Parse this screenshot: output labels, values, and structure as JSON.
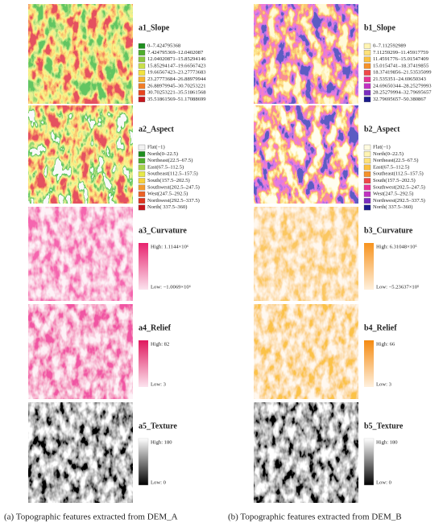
{
  "columns": [
    {
      "caption": "(a) Topographic  features extracted from DEM_A",
      "panels": [
        {
          "title": "a1_Slope",
          "legend": [
            {
              "label": "0–7.424795368",
              "color": "#1f8f1f"
            },
            {
              "label": "7.424795369–12.0402087",
              "color": "#4fae2c"
            },
            {
              "label": "12.04020871–15.85294146",
              "color": "#8dc63f"
            },
            {
              "label": "15.85294147–19.66567423",
              "color": "#c9df4a"
            },
            {
              "label": "19.66567423–23.27773683",
              "color": "#f2e33f"
            },
            {
              "label": "23.27773684–26.88979944",
              "color": "#f6b531"
            },
            {
              "label": "26.88979945–30.70253221",
              "color": "#f07d28"
            },
            {
              "label": "30.70253221–35.51861568",
              "color": "#e8431e"
            },
            {
              "label": "35.51861569–51.17088699",
              "color": "#c7161e"
            }
          ]
        },
        {
          "title": "a2_Aspect",
          "legend": [
            {
              "label": "Flat(−1)",
              "color": "#f2f2f2"
            },
            {
              "label": "North(0–22.5)",
              "color": "#1f8f1f"
            },
            {
              "label": "Northeast(22.5–67.5)",
              "color": "#4fae2c"
            },
            {
              "label": "East(67.5–112.5)",
              "color": "#a6d24a"
            },
            {
              "label": "Southeast(112.5–157.5)",
              "color": "#e6e94a"
            },
            {
              "label": "South(157.5–202.5)",
              "color": "#f6d13a"
            },
            {
              "label": "Southwest(202.5–247.5)",
              "color": "#f39a2e"
            },
            {
              "label": "West(247.5–292.5)",
              "color": "#ec6226"
            },
            {
              "label": "Northwest(292.5–337.5)",
              "color": "#e0351e"
            },
            {
              "label": "North( 337.5–360)",
              "color": "#c7161e"
            }
          ]
        },
        {
          "title": "a3_Curvature",
          "gradient": {
            "high": "High: 1.1144×10⁶",
            "low": "Low: −1.0069×10⁶",
            "high_color": "#e8226e",
            "low_color": "#fbe3ee"
          }
        },
        {
          "title": "a4_Relief",
          "gradient": {
            "high": "High: 82",
            "low": "Low: 3",
            "high_color": "#e0185e",
            "low_color": "#fce4ef"
          }
        },
        {
          "title": "a5_Texture",
          "gradient": {
            "high": "High: 180",
            "low": "Low: 0",
            "high_color": "#ffffff",
            "low_color": "#000000"
          }
        }
      ]
    },
    {
      "caption": "(b) Topographic features extracted from DEM_B",
      "panels": [
        {
          "title": "b1_Slope",
          "legend": [
            {
              "label": "0–7.112592989",
              "color": "#fff4b3"
            },
            {
              "label": "7.11259299–11.45917759",
              "color": "#fde27a"
            },
            {
              "label": "11.4591776–15.01547409",
              "color": "#fbc13f"
            },
            {
              "label": "15.0154741–18.37419855",
              "color": "#f5922a"
            },
            {
              "label": "18.37419856–21.53535099",
              "color": "#f04848"
            },
            {
              "label": "21.535351–24.69650343",
              "color": "#e63496"
            },
            {
              "label": "24.69650344–28.25279993",
              "color": "#c132c2"
            },
            {
              "label": "28.25279994–32.79695657",
              "color": "#7a2cc0"
            },
            {
              "label": "32.79695657–50.380867",
              "color": "#1b1b8c"
            }
          ]
        },
        {
          "title": "b2_Aspect",
          "legend": [
            {
              "label": "Flat(−1)",
              "color": "#fffbe0"
            },
            {
              "label": "North(0–22.5)",
              "color": "#fff4b3"
            },
            {
              "label": "Northeast(22.5–67.5)",
              "color": "#fde27a"
            },
            {
              "label": "East(67.5–112.5)",
              "color": "#fbc13f"
            },
            {
              "label": "Southeast(112.5–157.5)",
              "color": "#f5922a"
            },
            {
              "label": "South(157.5–202.5)",
              "color": "#f04848"
            },
            {
              "label": "Southwest(202.5–247.5)",
              "color": "#e63496"
            },
            {
              "label": "West(247.5–292.5)",
              "color": "#c132c2"
            },
            {
              "label": "Northwest(292.5–337.5)",
              "color": "#7a2cc0"
            },
            {
              "label": "North( 337.5–360)",
              "color": "#1b1b8c"
            }
          ]
        },
        {
          "title": "b3_Curvature",
          "gradient": {
            "high": "High: 6.31048×10⁵",
            "low": "Low: −5.23637×10⁵",
            "high_color": "#f7931e",
            "low_color": "#fff0dc"
          }
        },
        {
          "title": "b4_Relief",
          "gradient": {
            "high": "High: 66",
            "low": "Low: 3",
            "high_color": "#f58a10",
            "low_color": "#fff1de"
          }
        },
        {
          "title": "b5_Texture",
          "gradient": {
            "high": "High: 180",
            "low": "Low: 0",
            "high_color": "#ffffff",
            "low_color": "#000000"
          }
        }
      ]
    }
  ]
}
